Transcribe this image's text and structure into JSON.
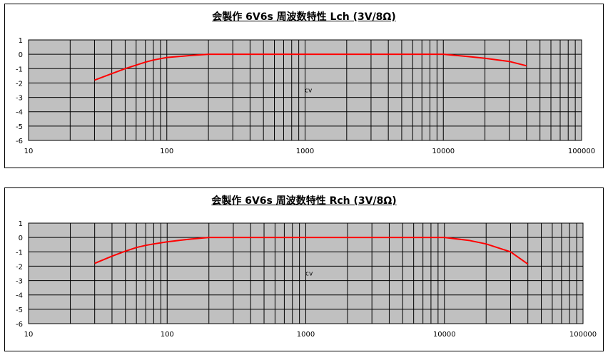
{
  "colors": {
    "plot_bg": "#c0c0c0",
    "grid": "#000000",
    "series": "#ff0000",
    "page_bg": "#ffffff"
  },
  "chart_data": [
    {
      "type": "line",
      "title": "会製作 6V6s 周波数特性  Lch (3V/8Ω)",
      "xscale": "log",
      "xlim": [
        10,
        100000
      ],
      "ylim": [
        -6,
        1
      ],
      "x_ticks": [
        "10",
        "100",
        "1000",
        "10000",
        "100000"
      ],
      "y_ticks": [
        "1",
        "0",
        "-1",
        "-2",
        "-3",
        "-4",
        "-5",
        "-6"
      ],
      "annotation": "cv",
      "grid": true,
      "series": [
        {
          "x": [
            30,
            40,
            50,
            60,
            70,
            80,
            100,
            150,
            200,
            300,
            500,
            1000,
            2000,
            5000,
            10000,
            15000,
            20000,
            30000,
            40000
          ],
          "y": [
            -1.8,
            -1.35,
            -1.0,
            -0.75,
            -0.55,
            -0.4,
            -0.22,
            -0.08,
            0,
            0,
            0,
            0,
            0,
            0,
            0,
            -0.15,
            -0.28,
            -0.5,
            -0.8
          ]
        }
      ]
    },
    {
      "type": "line",
      "title": "会製作 6V6s 周波数特性  Rch (3V/8Ω)",
      "xscale": "log",
      "xlim": [
        10,
        100000
      ],
      "ylim": [
        -6,
        1
      ],
      "x_ticks": [
        "10",
        "100",
        "1000",
        "10000",
        "100000"
      ],
      "y_ticks": [
        "1",
        "0",
        "-1",
        "-2",
        "-3",
        "-4",
        "-5",
        "-6"
      ],
      "annotation": "cv",
      "grid": true,
      "series": [
        {
          "x": [
            30,
            40,
            50,
            60,
            70,
            80,
            100,
            150,
            200,
            300,
            500,
            1000,
            2000,
            5000,
            10000,
            15000,
            20000,
            30000,
            40000
          ],
          "y": [
            -1.8,
            -1.3,
            -0.95,
            -0.7,
            -0.55,
            -0.45,
            -0.3,
            -0.1,
            0,
            0,
            0,
            0,
            0,
            0,
            0,
            -0.2,
            -0.45,
            -1.0,
            -1.85
          ]
        }
      ]
    }
  ]
}
